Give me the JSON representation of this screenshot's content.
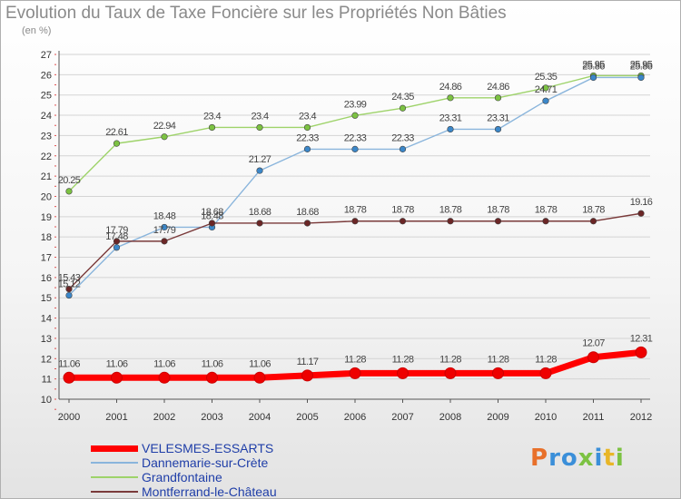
{
  "header": {
    "title": "Evolution du Taux de Taxe Foncière sur les Propriétés Non Bâties",
    "unit": "(en %)"
  },
  "brand": {
    "letters": [
      "P",
      "r",
      "o",
      "x",
      "i",
      "t",
      "i"
    ],
    "letter_colors": [
      "#e8702a",
      "#3b8fd9",
      "#3b8fd9",
      "#7cc242",
      "#3b8fd9",
      "#e8b628",
      "#7cc242"
    ]
  },
  "chart_data": {
    "type": "line",
    "title": "Evolution du Taux de Taxe Foncière sur les Propriétés Non Bâties",
    "ylabel": "(en %)",
    "xlabel": "",
    "x": [
      "2000",
      "2001",
      "2002",
      "2003",
      "2004",
      "2005",
      "2006",
      "2007",
      "2008",
      "2009",
      "2010",
      "2011",
      "2012"
    ],
    "ylim": [
      10,
      27
    ],
    "yticks": [
      10,
      11,
      12,
      13,
      14,
      15,
      16,
      17,
      18,
      19,
      20,
      21,
      22,
      23,
      24,
      25,
      26,
      27
    ],
    "grid": "horizontal",
    "legend_position": "bottom-left",
    "series": [
      {
        "name": "Grandfontaine",
        "color": "#9ed36a",
        "point_color": "#7cc242",
        "values": [
          20.25,
          22.61,
          22.94,
          23.4,
          23.4,
          23.4,
          23.99,
          24.35,
          24.86,
          24.86,
          25.35,
          25.95,
          25.95
        ],
        "labels": [
          "20.25",
          "22.61",
          "22.94",
          "23.4",
          "23.4",
          "23.4",
          "23.99",
          "24.35",
          "24.86",
          "24.86",
          "25.35",
          "25.95",
          "25.95"
        ]
      },
      {
        "name": "Dannemarie-sur-Crète",
        "color": "#8ab5dc",
        "point_color": "#3b87c9",
        "values": [
          15.12,
          17.48,
          18.48,
          18.48,
          21.27,
          22.33,
          22.33,
          22.33,
          23.31,
          23.31,
          24.71,
          25.86,
          25.86
        ],
        "labels": [
          "15.12",
          "17.48",
          "18.48",
          "18.48",
          "21.27",
          "22.33",
          "22.33",
          "22.33",
          "23.31",
          "23.31",
          "24.71",
          "25.86",
          "25.86"
        ]
      },
      {
        "name": "Montferrand-le-Château",
        "color": "#7a3a3a",
        "point_color": "#6b2626",
        "values": [
          15.43,
          17.79,
          17.79,
          18.68,
          18.68,
          18.68,
          18.78,
          18.78,
          18.78,
          18.78,
          18.78,
          18.78,
          19.16
        ],
        "labels": [
          "15.43",
          "17.79",
          "17.79",
          "18.68",
          "18.68",
          "18.68",
          "18.78",
          "18.78",
          "18.78",
          "18.78",
          "18.78",
          "18.78",
          "19.16"
        ]
      },
      {
        "name": "VELESMES-ESSARTS",
        "color": "#ff0000",
        "point_color": "#ee0000",
        "thick": true,
        "values": [
          11.06,
          11.06,
          11.06,
          11.06,
          11.06,
          11.17,
          11.28,
          11.28,
          11.28,
          11.28,
          11.28,
          12.07,
          12.31
        ],
        "labels": [
          "11.06",
          "11.06",
          "11.06",
          "11.06",
          "11.06",
          "11.17",
          "11.28",
          "11.28",
          "11.28",
          "11.28",
          "11.28",
          "12.07",
          "12.31"
        ]
      }
    ],
    "legend": [
      "VELESMES-ESSARTS",
      "Dannemarie-sur-Crète",
      "Grandfontaine",
      "Montferrand-le-Château"
    ]
  }
}
